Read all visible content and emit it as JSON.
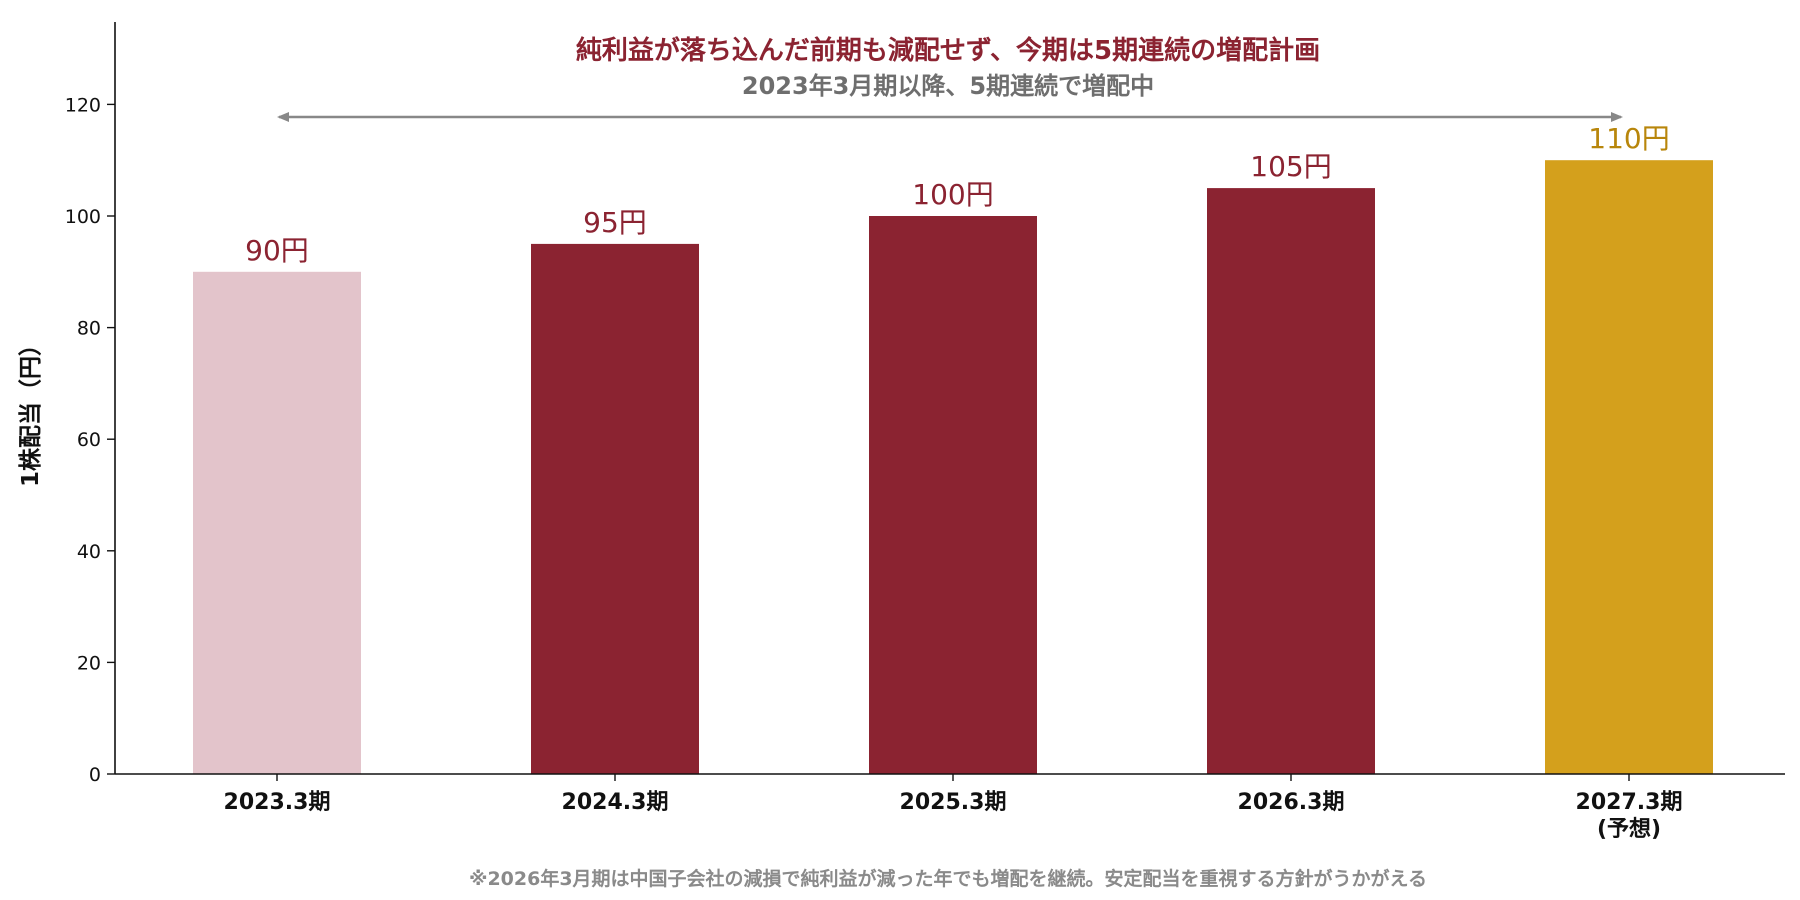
{
  "chart_data": {
    "type": "bar",
    "categories": [
      "2023.3期",
      "2024.3期",
      "2025.3期",
      "2026.3期",
      "2027.3期"
    ],
    "category_notes": [
      "",
      "",
      "",
      "",
      "(予想)"
    ],
    "values": [
      90,
      95,
      100,
      105,
      110
    ],
    "value_labels": [
      "90円",
      "95円",
      "100円",
      "105円",
      "110円"
    ],
    "bar_colors": [
      "#e3c4cb",
      "#8b2331",
      "#8b2331",
      "#8b2331",
      "#d4a01c"
    ],
    "label_colors": [
      "#8b2331",
      "#8b2331",
      "#8b2331",
      "#8b2331",
      "#b8860b"
    ],
    "ylabel": "1株配当（円）",
    "ylim": [
      0,
      135
    ],
    "yticks": [
      0,
      20,
      40,
      60,
      80,
      100,
      120
    ],
    "grid": false,
    "annotation_title": "純利益が落ち込んだ前期も減配せず、今期は5期連続の増配計画",
    "annotation_subtitle": "2023年3月期以降、5期連続で増配中",
    "arrow_span": [
      "2023.3期",
      "2027.3期"
    ],
    "footnote": "※2026年3月期は中国子会社の減損で純利益が減った年でも増配を継続。安定配当を重視する方針がうかがえる"
  }
}
